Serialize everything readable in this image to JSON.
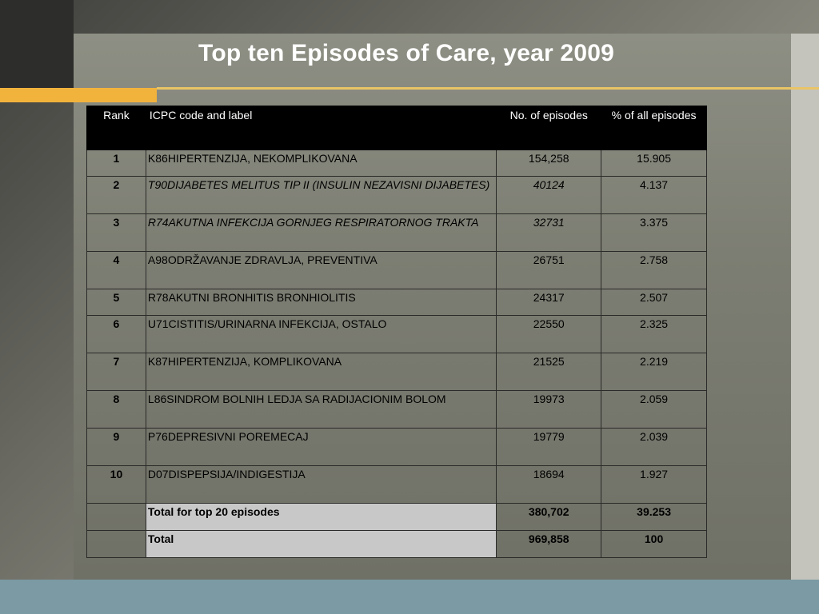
{
  "title": "Top ten Episodes of Care, year 2009",
  "table": {
    "headers": [
      "Rank",
      "ICPC code and label",
      "No. of episodes",
      "% of all episodes"
    ],
    "rows": [
      {
        "rank": "1",
        "label": "K86HIPERTENZIJA, NEKOMPLIKOVANA",
        "episodes": "154,258",
        "percent": "15.905",
        "italic": false
      },
      {
        "rank": "2",
        "label": "T90DIJABETES MELITUS TIP II  (INSULIN NEZAVISNI DIJABETES)",
        "episodes": "40124",
        "percent": "4.137",
        "italic": true
      },
      {
        "rank": "3",
        "label": "R74AKUTNA INFEKCIJA GORNJEG RESPIRATORNOG TRAKTA",
        "episodes": "32731",
        "percent": "3.375",
        "italic": true
      },
      {
        "rank": "4",
        "label": "A98ODRŽAVANJE ZDRAVLJA, PREVENTIVA",
        "episodes": "26751",
        "percent": "2.758",
        "italic": false
      },
      {
        "rank": "5",
        "label": "R78AKUTNI BRONHITIS BRONHIOLITIS",
        "episodes": "24317",
        "percent": "2.507",
        "italic": false
      },
      {
        "rank": "6",
        "label": "U71CISTITIS/URINARNA INFEKCIJA, OSTALO",
        "episodes": "22550",
        "percent": "2.325",
        "italic": false
      },
      {
        "rank": "7",
        "label": "K87HIPERTENZIJA, KOMPLIKOVANA",
        "episodes": "21525",
        "percent": "2.219",
        "italic": false
      },
      {
        "rank": "8",
        "label": "L86SINDROM BOLNIH LEDJA SA RADIJACIONIM BOLOM",
        "episodes": "19973",
        "percent": "2.059",
        "italic": false
      },
      {
        "rank": "9",
        "label": "P76DEPRESIVNI POREMECAJ",
        "episodes": "19779",
        "percent": "2.039",
        "italic": false
      },
      {
        "rank": "10",
        "label": "D07DISPEPSIJA/INDIGESTIJA",
        "episodes": "18694",
        "percent": "1.927",
        "italic": false
      }
    ],
    "totals": [
      {
        "label": "Total for top 20 episodes",
        "episodes": "380,702",
        "percent": "39.253"
      },
      {
        "label": "Total",
        "episodes": "969,858",
        "percent": "100"
      }
    ]
  },
  "colors": {
    "accent_orange": "#f2b33d",
    "bottom_band": "#7b9aa3",
    "header_bg": "#000000"
  }
}
